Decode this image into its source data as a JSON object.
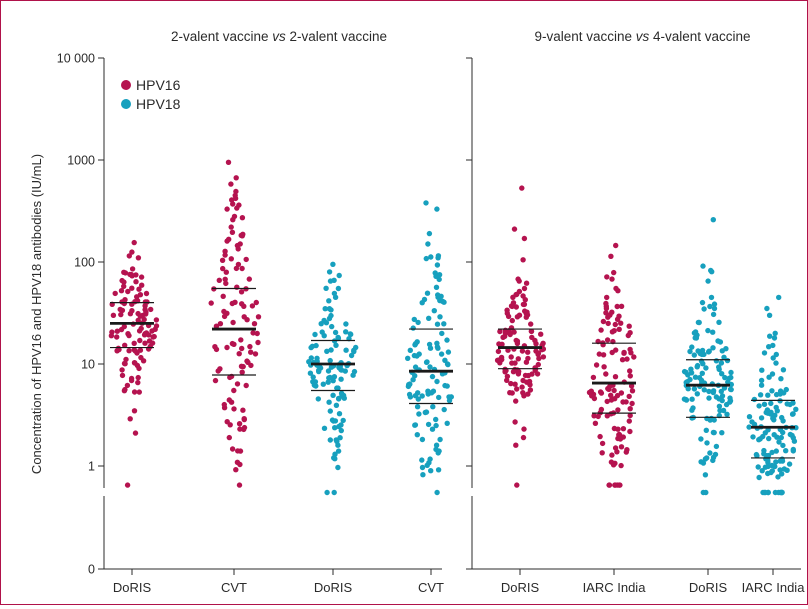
{
  "colors": {
    "HPV16": "#b5134f",
    "HPV18": "#17a0be",
    "frame": "#b0124a",
    "axis": "#2b2b2b"
  },
  "chart_data": {
    "type": "scatter",
    "subtype": "jittered dot plot with median and interquartile range lines",
    "ylabel": "Concentration of HPV16 and HPV18 antibodies (IU/mL)",
    "yscale": "log",
    "yticks": [
      {
        "value": 0,
        "label": "0"
      },
      {
        "value": 1,
        "label": "1"
      },
      {
        "value": 10,
        "label": "10"
      },
      {
        "value": 100,
        "label": "100"
      },
      {
        "value": 1000,
        "label": "1000"
      },
      {
        "value": 10000,
        "label": "10 000"
      }
    ],
    "legend": {
      "placement": "top-left",
      "entries": [
        {
          "name": "HPV16",
          "color": "#b5134f"
        },
        {
          "name": "HPV18",
          "color": "#17a0be"
        }
      ]
    },
    "panels": [
      {
        "title": "2-valent vaccine vs 2-valent vaccine",
        "title_parts": [
          "2-valent vaccine ",
          "vs",
          " 2-valent vaccine"
        ],
        "groups": [
          {
            "label": "DoRIS",
            "series": "HPV16",
            "n": 115,
            "q1": 14.5,
            "median": 25,
            "q3": 40,
            "min": 0.65,
            "max": 155,
            "extra": [
              0.65,
              2.1,
              2.9,
              155,
              125,
              110
            ]
          },
          {
            "label": "CVT",
            "series": "HPV16",
            "n": 110,
            "q1": 7.8,
            "median": 22,
            "q3": 55,
            "min": 0.65,
            "max": 950,
            "extra": [
              0.65,
              1.9,
              2.3,
              2.6,
              950,
              580,
              450,
              420,
              370,
              330,
              280,
              260,
              220
            ]
          },
          {
            "label": "DoRIS",
            "series": "HPV18",
            "n": 120,
            "q1": 5.5,
            "median": 10,
            "q3": 17,
            "min": 0.55,
            "max": 95,
            "extra": [
              0.55,
              0.55,
              1.2,
              1.4,
              1.6,
              95,
              80,
              65,
              55
            ]
          },
          {
            "label": "CVT",
            "series": "HPV18",
            "n": 115,
            "q1": 4.1,
            "median": 8.5,
            "q3": 22,
            "min": 0.55,
            "max": 380,
            "extra": [
              0.55,
              1.4,
              1.6,
              380,
              330,
              190,
              150,
              115,
              110,
              78,
              75
            ]
          }
        ]
      },
      {
        "title": "9-valent vaccine vs 4-valent vaccine",
        "title_parts": [
          "9-valent vaccine ",
          "vs",
          " 4-valent vaccine"
        ],
        "groups": [
          {
            "label": "DoRIS",
            "series": "HPV16",
            "n": 120,
            "q1": 9,
            "median": 14.5,
            "q3": 22,
            "min": 0.65,
            "max": 530,
            "extra": [
              0.65,
              1.6,
              1.9,
              2.3,
              2.7,
              530,
              210,
              170,
              68,
              65,
              62,
              55
            ]
          },
          {
            "label": "IARC India",
            "series": "HPV16",
            "n": 120,
            "q1": 3.3,
            "median": 6.5,
            "q3": 16,
            "min": 0.65,
            "max": 145,
            "extra": [
              0.65,
              0.65,
              0.65,
              0.65,
              0.65,
              0.65,
              0.65,
              1.5,
              145,
              68,
              55,
              45
            ]
          },
          {
            "label": "DoRIS",
            "series": "HPV18",
            "n": 130,
            "q1": 3,
            "median": 6.2,
            "q3": 11,
            "min": 0.55,
            "max": 260,
            "extra": [
              0.55,
              0.55,
              1.1,
              1.2,
              1.3,
              260,
              65,
              45,
              40,
              35
            ]
          },
          {
            "label": "IARC India",
            "series": "HPV18",
            "n": 125,
            "q1": 1.2,
            "median": 2.4,
            "q3": 4.4,
            "min": 0.55,
            "max": 45,
            "extra": [
              0.55,
              0.55,
              0.55,
              0.55,
              0.55,
              0.55,
              0.55,
              0.55,
              0.55,
              0.55,
              0.55,
              0.55,
              45,
              35,
              30,
              20,
              18
            ]
          }
        ]
      }
    ],
    "grid": false
  }
}
